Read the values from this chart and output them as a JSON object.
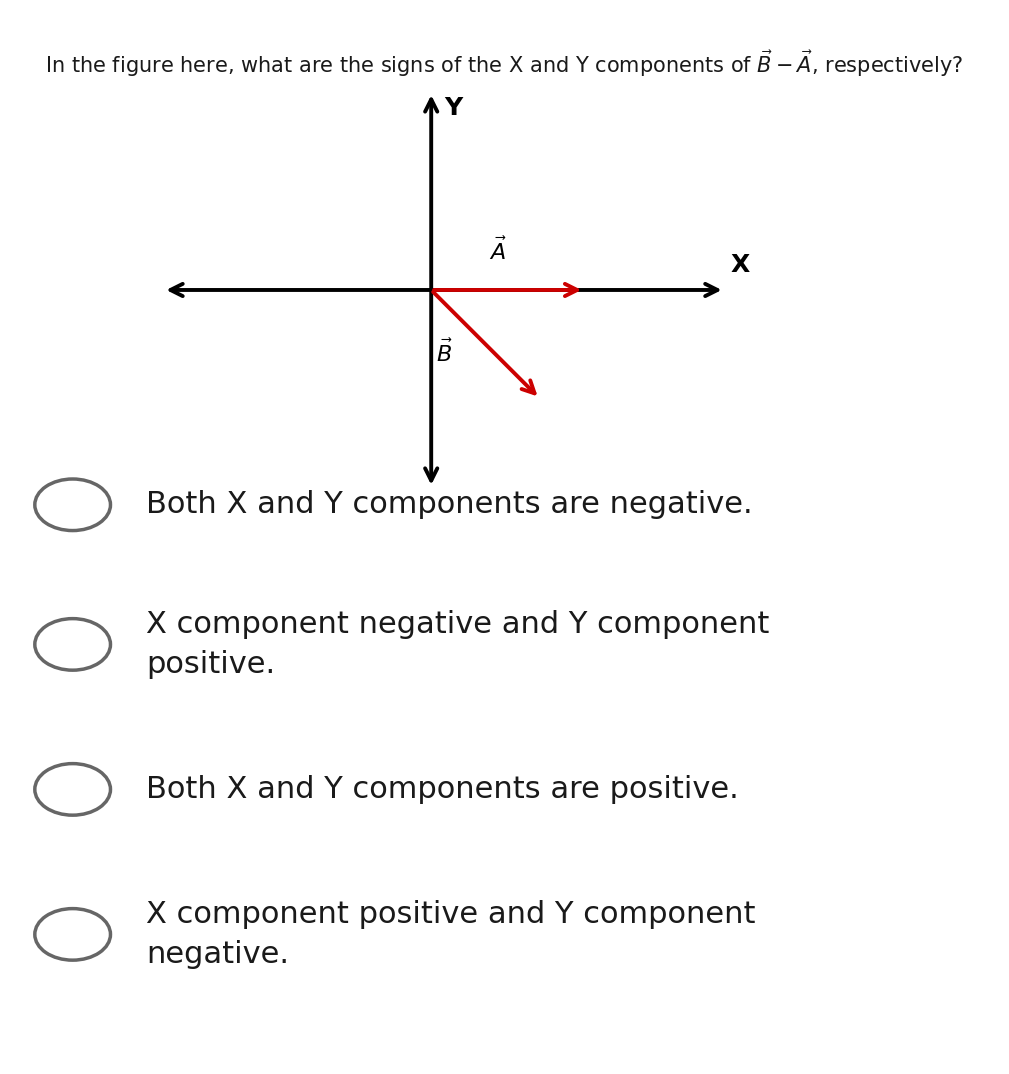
{
  "background_color": "#ffffff",
  "fig_width": 10.09,
  "fig_height": 10.74,
  "vector_color": "#cc0000",
  "axis_color": "#000000",
  "label_color": "#1a1a1a",
  "options": [
    "Both X and Y components are negative.",
    "X component negative and Y component\npositive.",
    "Both X and Y components are positive.",
    "X component positive and Y component\nnegative."
  ],
  "option_fontsize": 22,
  "title_fontsize": 15,
  "title_text": "In the figure here, what are the signs of the X and Y components of $\\vec{B} - \\vec{A}$, respectively?",
  "circle_ec": "#666666",
  "circle_lw": 2.5
}
